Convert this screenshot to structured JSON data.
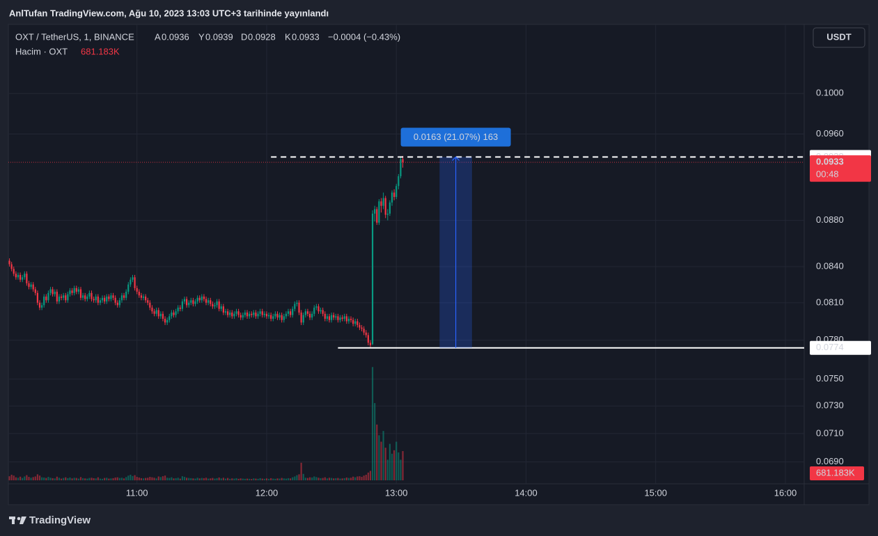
{
  "header": {
    "title": "AnlTufan TradingView.com, Ağu 10, 2023 13:03 UTC+3 tarihinde yayınlandı"
  },
  "currency_button": "USDT",
  "footer": {
    "brand": "TradingView"
  },
  "chart_data": {
    "type": "candlestick",
    "legend": {
      "symbol": "OXT / TetherUS, 1, BINANCE",
      "labels": [
        "A",
        "Y",
        "D",
        "K"
      ],
      "change": "−0.0004 (−0.43%)",
      "volume_name": "Hacim · OXT",
      "volume_label": "681.183K"
    },
    "log_scale": true,
    "grid": true,
    "up_color": "#089981",
    "down_color": "#f23645",
    "xlim": [
      600.5,
      968.7
    ],
    "xticks": [
      {
        "value": 660,
        "label": "11:00"
      },
      {
        "value": 720,
        "label": "12:00"
      },
      {
        "value": 780,
        "label": "13:00"
      },
      {
        "value": 840,
        "label": "14:00"
      },
      {
        "value": 900,
        "label": "15:00"
      },
      {
        "value": 960,
        "label": "16:00"
      }
    ],
    "ylim": [
      0.0675,
      0.1072
    ],
    "yticks": [
      {
        "value": 0.1,
        "label": "0.1000"
      },
      {
        "value": 0.096,
        "label": "0.0960"
      },
      {
        "value": 0.088,
        "label": "0.0880"
      },
      {
        "value": 0.084,
        "label": "0.0840"
      },
      {
        "value": 0.081,
        "label": "0.0810"
      },
      {
        "value": 0.078,
        "label": "0.0780"
      },
      {
        "value": 0.075,
        "label": "0.0750"
      },
      {
        "value": 0.073,
        "label": "0.0730"
      },
      {
        "value": 0.071,
        "label": "0.0710"
      },
      {
        "value": 0.069,
        "label": "0.0690"
      }
    ],
    "volume_lim": [
      0,
      4380000
    ],
    "x": [
      601,
      602,
      603,
      604,
      605,
      606,
      607,
      608,
      609,
      610,
      611,
      612,
      613,
      614,
      615,
      616,
      617,
      618,
      619,
      620,
      621,
      622,
      623,
      624,
      625,
      626,
      627,
      628,
      629,
      630,
      631,
      632,
      633,
      634,
      635,
      636,
      637,
      638,
      639,
      640,
      641,
      642,
      643,
      644,
      645,
      646,
      647,
      648,
      649,
      650,
      651,
      652,
      653,
      654,
      655,
      656,
      657,
      658,
      659,
      660,
      661,
      662,
      663,
      664,
      665,
      666,
      667,
      668,
      669,
      670,
      671,
      672,
      673,
      674,
      675,
      676,
      677,
      678,
      679,
      680,
      681,
      682,
      683,
      684,
      685,
      686,
      687,
      688,
      689,
      690,
      691,
      692,
      693,
      694,
      695,
      696,
      697,
      698,
      699,
      700,
      701,
      702,
      703,
      704,
      705,
      706,
      707,
      708,
      709,
      710,
      711,
      712,
      713,
      714,
      715,
      716,
      717,
      718,
      719,
      720,
      721,
      722,
      723,
      724,
      725,
      726,
      727,
      728,
      729,
      730,
      731,
      732,
      733,
      734,
      735,
      736,
      737,
      738,
      739,
      740,
      741,
      742,
      743,
      744,
      745,
      746,
      747,
      748,
      749,
      750,
      751,
      752,
      753,
      754,
      755,
      756,
      757,
      758,
      759,
      760,
      761,
      762,
      763,
      764,
      765,
      766,
      767,
      768,
      769,
      770,
      771,
      772,
      773,
      774,
      775,
      776,
      777,
      778,
      779,
      780,
      781,
      782,
      783
    ],
    "open": [
      0.0845,
      0.0842,
      0.0838,
      0.0834,
      0.0831,
      0.0833,
      0.0829,
      0.0831,
      0.0834,
      0.0826,
      0.0823,
      0.0825,
      0.0821,
      0.0818,
      0.081,
      0.0806,
      0.0808,
      0.0815,
      0.0812,
      0.0818,
      0.0821,
      0.0817,
      0.0819,
      0.0811,
      0.0815,
      0.0814,
      0.0816,
      0.0812,
      0.0817,
      0.082,
      0.0818,
      0.0822,
      0.0819,
      0.0821,
      0.0814,
      0.0816,
      0.0813,
      0.0815,
      0.0818,
      0.0813,
      0.0812,
      0.0815,
      0.081,
      0.0812,
      0.0814,
      0.0811,
      0.0815,
      0.0813,
      0.0816,
      0.0814,
      0.081,
      0.0808,
      0.0812,
      0.0816,
      0.0814,
      0.0819,
      0.0825,
      0.0829,
      0.0831,
      0.0822,
      0.0819,
      0.0816,
      0.0814,
      0.0815,
      0.0812,
      0.081,
      0.0806,
      0.0803,
      0.0801,
      0.0804,
      0.0799,
      0.0801,
      0.0797,
      0.0794,
      0.0796,
      0.0799,
      0.0802,
      0.08,
      0.0803,
      0.0806,
      0.0805,
      0.0811,
      0.0813,
      0.0808,
      0.081,
      0.0812,
      0.0809,
      0.0811,
      0.0814,
      0.0812,
      0.0815,
      0.0813,
      0.081,
      0.0812,
      0.0809,
      0.0807,
      0.0808,
      0.0811,
      0.0805,
      0.0807,
      0.0802,
      0.0803,
      0.08,
      0.0802,
      0.0799,
      0.0801,
      0.0803,
      0.08,
      0.0798,
      0.08,
      0.0802,
      0.0799,
      0.0801,
      0.08,
      0.0802,
      0.0799,
      0.0801,
      0.0803,
      0.08,
      0.0801,
      0.0799,
      0.08,
      0.0797,
      0.0799,
      0.0801,
      0.0798,
      0.08,
      0.0796,
      0.0799,
      0.0801,
      0.0803,
      0.08,
      0.0805,
      0.0809,
      0.081,
      0.0802,
      0.0794,
      0.08,
      0.0803,
      0.0801,
      0.0798,
      0.0801,
      0.0806,
      0.0807,
      0.0803,
      0.0804,
      0.0801,
      0.0797,
      0.0799,
      0.0796,
      0.08,
      0.0798,
      0.0799,
      0.0796,
      0.0798,
      0.0797,
      0.0799,
      0.0795,
      0.0797,
      0.0796,
      0.0793,
      0.0795,
      0.0792,
      0.079,
      0.0789,
      0.0786,
      0.0784,
      0.0778,
      0.0777,
      0.0886,
      0.089,
      0.0878,
      0.0897,
      0.0893,
      0.09,
      0.0885,
      0.0886,
      0.0896,
      0.0905,
      0.0901,
      0.0911,
      0.092,
      0.0936
    ],
    "high": [
      0.0847,
      0.0844,
      0.084,
      0.0836,
      0.0835,
      0.0835,
      0.0833,
      0.0836,
      0.0836,
      0.0828,
      0.0827,
      0.0827,
      0.0823,
      0.082,
      0.0812,
      0.081,
      0.0817,
      0.0817,
      0.082,
      0.0823,
      0.0823,
      0.0821,
      0.0821,
      0.0817,
      0.0817,
      0.0818,
      0.0818,
      0.0819,
      0.0822,
      0.0822,
      0.0824,
      0.0824,
      0.0823,
      0.0823,
      0.0818,
      0.0818,
      0.0817,
      0.082,
      0.082,
      0.0815,
      0.0817,
      0.0817,
      0.0814,
      0.0816,
      0.0816,
      0.0817,
      0.0817,
      0.0818,
      0.0818,
      0.0816,
      0.0812,
      0.0814,
      0.0818,
      0.0818,
      0.0821,
      0.0827,
      0.0831,
      0.0833,
      0.0833,
      0.0824,
      0.0821,
      0.0818,
      0.0817,
      0.0817,
      0.0814,
      0.0812,
      0.0808,
      0.0805,
      0.0806,
      0.0806,
      0.0803,
      0.0803,
      0.0799,
      0.0798,
      0.0801,
      0.0804,
      0.0804,
      0.0805,
      0.0808,
      0.0808,
      0.0813,
      0.0815,
      0.0815,
      0.0812,
      0.0814,
      0.0814,
      0.0813,
      0.0816,
      0.0816,
      0.0817,
      0.0817,
      0.0815,
      0.0814,
      0.0814,
      0.0811,
      0.081,
      0.0813,
      0.0813,
      0.0809,
      0.0809,
      0.0805,
      0.0805,
      0.0804,
      0.0804,
      0.0803,
      0.0805,
      0.0805,
      0.0802,
      0.0802,
      0.0804,
      0.0804,
      0.0803,
      0.0803,
      0.0804,
      0.0804,
      0.0803,
      0.0805,
      0.0805,
      0.0803,
      0.0803,
      0.0802,
      0.0802,
      0.0801,
      0.0803,
      0.0803,
      0.0802,
      0.0802,
      0.0801,
      0.0803,
      0.0805,
      0.0805,
      0.0807,
      0.0811,
      0.0812,
      0.0812,
      0.0804,
      0.0802,
      0.0805,
      0.0805,
      0.0803,
      0.0803,
      0.0808,
      0.0809,
      0.0809,
      0.0806,
      0.0806,
      0.0803,
      0.0801,
      0.0801,
      0.0802,
      0.0802,
      0.0801,
      0.0801,
      0.08,
      0.08,
      0.0801,
      0.0801,
      0.0799,
      0.0799,
      0.0798,
      0.0797,
      0.0797,
      0.0794,
      0.0792,
      0.0791,
      0.0788,
      0.0786,
      0.078,
      0.0889,
      0.0893,
      0.0892,
      0.0899,
      0.09,
      0.0905,
      0.0902,
      0.089,
      0.0898,
      0.0907,
      0.0908,
      0.0913,
      0.0922,
      0.0938,
      0.0939
    ],
    "low": [
      0.084,
      0.0836,
      0.0832,
      0.0829,
      0.0829,
      0.0827,
      0.0827,
      0.0829,
      0.0824,
      0.0821,
      0.0821,
      0.0819,
      0.0816,
      0.0808,
      0.0804,
      0.0804,
      0.0806,
      0.081,
      0.081,
      0.0816,
      0.0815,
      0.0815,
      0.0809,
      0.0809,
      0.0812,
      0.0812,
      0.081,
      0.081,
      0.0815,
      0.0816,
      0.0816,
      0.0817,
      0.0817,
      0.0812,
      0.0812,
      0.0811,
      0.0811,
      0.0813,
      0.0811,
      0.081,
      0.081,
      0.0808,
      0.0808,
      0.081,
      0.0809,
      0.0809,
      0.0811,
      0.0811,
      0.0812,
      0.0808,
      0.0806,
      0.0806,
      0.081,
      0.0812,
      0.0812,
      0.0817,
      0.0823,
      0.0827,
      0.082,
      0.0817,
      0.0814,
      0.0812,
      0.0812,
      0.081,
      0.0808,
      0.0804,
      0.0801,
      0.0799,
      0.0799,
      0.0797,
      0.0797,
      0.0795,
      0.0792,
      0.0792,
      0.0794,
      0.0797,
      0.0798,
      0.0798,
      0.0801,
      0.0803,
      0.0803,
      0.0809,
      0.0806,
      0.0806,
      0.0808,
      0.0807,
      0.0807,
      0.0809,
      0.081,
      0.081,
      0.0811,
      0.0808,
      0.0808,
      0.0807,
      0.0805,
      0.0805,
      0.0806,
      0.0803,
      0.0803,
      0.08,
      0.08,
      0.0798,
      0.0798,
      0.0797,
      0.0797,
      0.0799,
      0.0798,
      0.0796,
      0.0796,
      0.0798,
      0.0797,
      0.0797,
      0.0798,
      0.0798,
      0.0797,
      0.0797,
      0.0799,
      0.0798,
      0.0798,
      0.0797,
      0.0797,
      0.0795,
      0.0795,
      0.0797,
      0.0796,
      0.0796,
      0.0794,
      0.0794,
      0.0797,
      0.0799,
      0.0798,
      0.0798,
      0.0803,
      0.0807,
      0.08,
      0.0792,
      0.0792,
      0.0798,
      0.0799,
      0.0796,
      0.0796,
      0.0799,
      0.0804,
      0.0801,
      0.0801,
      0.0799,
      0.0795,
      0.0795,
      0.0794,
      0.0794,
      0.0796,
      0.0796,
      0.0794,
      0.0794,
      0.0795,
      0.0795,
      0.0793,
      0.0793,
      0.0794,
      0.0791,
      0.0791,
      0.079,
      0.0788,
      0.0787,
      0.0784,
      0.0782,
      0.0776,
      0.0774,
      0.0776,
      0.0879,
      0.0876,
      0.0876,
      0.0887,
      0.089,
      0.0882,
      0.088,
      0.0884,
      0.0893,
      0.0898,
      0.0899,
      0.0908,
      0.0918,
      0.0928
    ],
    "close": [
      0.0842,
      0.0838,
      0.0834,
      0.0831,
      0.0833,
      0.0829,
      0.0831,
      0.0834,
      0.0826,
      0.0823,
      0.0825,
      0.0821,
      0.0818,
      0.081,
      0.0806,
      0.0808,
      0.0815,
      0.0812,
      0.0818,
      0.0821,
      0.0817,
      0.0819,
      0.0811,
      0.0815,
      0.0814,
      0.0816,
      0.0812,
      0.0817,
      0.082,
      0.0818,
      0.0822,
      0.0819,
      0.0821,
      0.0814,
      0.0816,
      0.0813,
      0.0815,
      0.0818,
      0.0813,
      0.0812,
      0.0815,
      0.081,
      0.0812,
      0.0814,
      0.0811,
      0.0815,
      0.0813,
      0.0816,
      0.0814,
      0.081,
      0.0808,
      0.0812,
      0.0816,
      0.0814,
      0.0819,
      0.0825,
      0.0829,
      0.0831,
      0.0822,
      0.0819,
      0.0816,
      0.0814,
      0.0815,
      0.0812,
      0.081,
      0.0806,
      0.0803,
      0.0801,
      0.0804,
      0.0799,
      0.0801,
      0.0797,
      0.0794,
      0.0796,
      0.0799,
      0.0802,
      0.08,
      0.0803,
      0.0806,
      0.0805,
      0.0811,
      0.0813,
      0.0808,
      0.081,
      0.0812,
      0.0809,
      0.0811,
      0.0814,
      0.0812,
      0.0815,
      0.0813,
      0.081,
      0.0812,
      0.0809,
      0.0807,
      0.0808,
      0.0811,
      0.0805,
      0.0807,
      0.0802,
      0.0803,
      0.08,
      0.0802,
      0.0799,
      0.0801,
      0.0803,
      0.08,
      0.0798,
      0.08,
      0.0802,
      0.0799,
      0.0801,
      0.08,
      0.0802,
      0.0799,
      0.0801,
      0.0803,
      0.08,
      0.0801,
      0.0799,
      0.08,
      0.0797,
      0.0799,
      0.0801,
      0.0798,
      0.08,
      0.0796,
      0.0799,
      0.0801,
      0.0803,
      0.08,
      0.0805,
      0.0809,
      0.081,
      0.0802,
      0.0794,
      0.08,
      0.0803,
      0.0801,
      0.0798,
      0.0801,
      0.0806,
      0.0807,
      0.0803,
      0.0804,
      0.0801,
      0.0797,
      0.0799,
      0.0796,
      0.08,
      0.0798,
      0.0799,
      0.0796,
      0.0798,
      0.0797,
      0.0799,
      0.0795,
      0.0797,
      0.0796,
      0.0793,
      0.0795,
      0.0792,
      0.079,
      0.0789,
      0.0786,
      0.0784,
      0.0778,
      0.0776,
      0.0886,
      0.089,
      0.0878,
      0.0897,
      0.0893,
      0.09,
      0.0885,
      0.0886,
      0.0896,
      0.0905,
      0.0901,
      0.0911,
      0.092,
      0.0936,
      0.0933
    ],
    "volume": [
      95000,
      130000,
      110000,
      70000,
      60000,
      85000,
      55000,
      90000,
      120000,
      80000,
      60000,
      75000,
      90000,
      140000,
      110000,
      70000,
      65000,
      55000,
      80000,
      60000,
      50000,
      45000,
      85000,
      60000,
      40000,
      55000,
      70000,
      50000,
      65000,
      45000,
      60000,
      55000,
      40000,
      75000,
      50000,
      45000,
      40000,
      55000,
      60000,
      50000,
      45000,
      70000,
      40000,
      35000,
      55000,
      60000,
      40000,
      45000,
      50000,
      65000,
      70000,
      55000,
      60000,
      45000,
      75000,
      110000,
      130000,
      100000,
      120000,
      80000,
      65000,
      50000,
      45000,
      55000,
      60000,
      80000,
      70000,
      60000,
      45000,
      90000,
      75000,
      95000,
      110000,
      60000,
      55000,
      70000,
      45000,
      50000,
      60000,
      40000,
      95000,
      80000,
      60000,
      55000,
      50000,
      45000,
      40000,
      60000,
      45000,
      55000,
      50000,
      60000,
      40000,
      45000,
      55000,
      40000,
      50000,
      65000,
      45000,
      60000,
      40000,
      55000,
      35000,
      45000,
      40000,
      50000,
      35000,
      45000,
      40000,
      35000,
      40000,
      35000,
      30000,
      45000,
      40000,
      35000,
      50000,
      40000,
      35000,
      45000,
      35000,
      50000,
      40000,
      35000,
      45000,
      40000,
      55000,
      45000,
      40000,
      50000,
      45000,
      70000,
      90000,
      120000,
      140000,
      410000,
      150000,
      60000,
      55000,
      70000,
      65000,
      90000,
      75000,
      60000,
      50000,
      55000,
      70000,
      45000,
      60000,
      55000,
      45000,
      50000,
      55000,
      40000,
      45000,
      50000,
      65000,
      55000,
      60000,
      85000,
      70000,
      90000,
      95000,
      80000,
      110000,
      130000,
      180000,
      220000,
      2640000,
      1800000,
      1300000,
      1050000,
      900000,
      1150000,
      760000,
      480000,
      850000,
      620000,
      700000,
      900000,
      650000,
      480000,
      681183
    ],
    "hlines": [
      {
        "value": 0.0938,
        "x_start": 722,
        "style": "dashed",
        "color": "#ffffff"
      },
      {
        "value": 0.0774,
        "x_start": 753,
        "style": "solid",
        "color": "#ffffff"
      }
    ],
    "last_price": {
      "countdown": "00:48",
      "color": "#f23645"
    },
    "measure": {
      "label": "0.0163 (21.07%) 163",
      "x": [
        800,
        815
      ],
      "y": [
        0.0774,
        0.0938
      ],
      "color": "#2962ff"
    }
  }
}
